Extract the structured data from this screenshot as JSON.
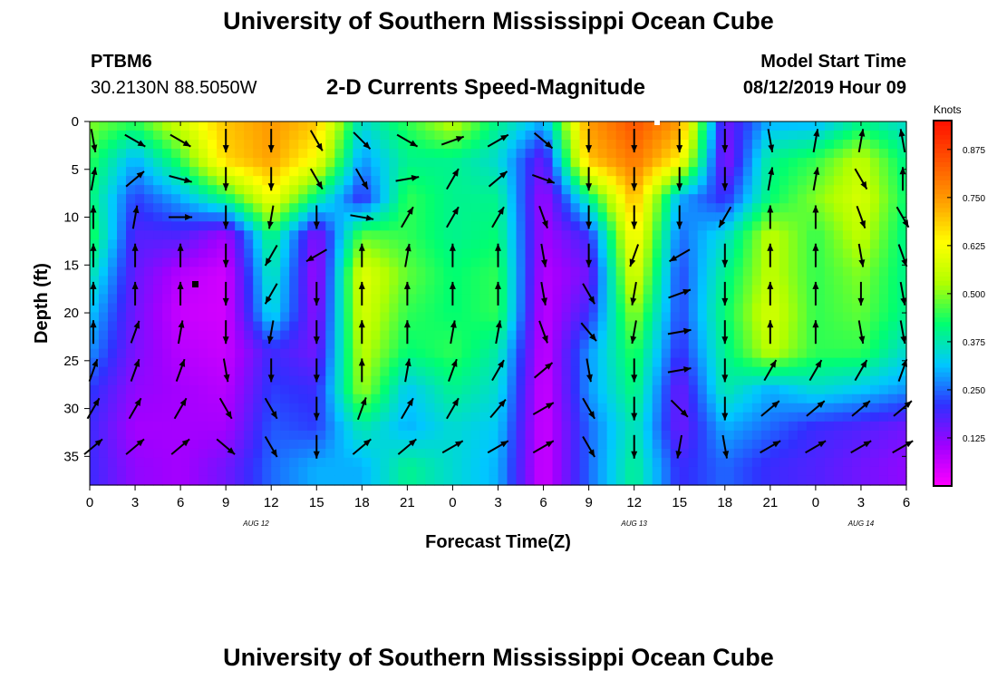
{
  "page": {
    "title_top": "University of Southern Mississippi Ocean Cube",
    "title_bottom": "University of Southern Mississippi Ocean Cube",
    "station_id": "PTBM6",
    "station_coords": "30.2130N 88.5050W",
    "plot_title": "2-D Currents Speed-Magnitude",
    "model_start_label": "Model Start Time",
    "model_start_value": "08/12/2019 Hour 09"
  },
  "chart_data": {
    "type": "heatmap",
    "title": "2-D Currents Speed-Magnitude",
    "xlabel": "Forecast Time(Z)",
    "ylabel": "Depth (ft)",
    "x_tick_labels": [
      "0",
      "3",
      "6",
      "9",
      "12",
      "15",
      "18",
      "21",
      "0",
      "3",
      "6",
      "9",
      "12",
      "15",
      "18",
      "21",
      "0",
      "3",
      "6"
    ],
    "x_range_hours": [
      0,
      54
    ],
    "date_labels": [
      {
        "text": "AUG 12",
        "hour": 11
      },
      {
        "text": "AUG 13",
        "hour": 36
      },
      {
        "text": "AUG 14",
        "hour": 51
      }
    ],
    "y_ticks": [
      0,
      5,
      10,
      15,
      20,
      25,
      30,
      35
    ],
    "y_range": [
      0,
      38
    ],
    "y_inverted": true,
    "colorbar": {
      "unit": "Knots",
      "tick_values": [
        0.125,
        0.25,
        0.375,
        0.5,
        0.625,
        0.75,
        0.875
      ],
      "tick_labels": [
        "0.125",
        "0.250",
        "0.375",
        "0.500",
        "0.625",
        "0.750",
        "0.875"
      ],
      "range": [
        0.0,
        0.95
      ],
      "colors": [
        "#ff00ff",
        "#a000ff",
        "#3030ff",
        "#00c8ff",
        "#00ff70",
        "#b0ff00",
        "#ffff00",
        "#ffa000",
        "#ff5500",
        "#ff1000"
      ]
    },
    "grid": false,
    "legend": "colorbar at right",
    "time_hours": [
      0,
      3,
      6,
      9,
      12,
      15,
      18,
      21,
      24,
      27,
      30,
      33,
      36,
      39,
      42,
      45,
      48,
      51,
      54
    ],
    "depth_ft": [
      0,
      4,
      8,
      12,
      16,
      20,
      24,
      28,
      32,
      36
    ],
    "speed_knots": [
      [
        0.5,
        0.45,
        0.58,
        0.7,
        0.75,
        0.7,
        0.35,
        0.45,
        0.55,
        0.4,
        0.3,
        0.75,
        0.85,
        0.75,
        0.15,
        0.3,
        0.3,
        0.4,
        0.35
      ],
      [
        0.45,
        0.3,
        0.45,
        0.68,
        0.74,
        0.62,
        0.28,
        0.4,
        0.4,
        0.35,
        0.15,
        0.7,
        0.8,
        0.65,
        0.12,
        0.4,
        0.45,
        0.55,
        0.4
      ],
      [
        0.42,
        0.22,
        0.3,
        0.42,
        0.62,
        0.4,
        0.2,
        0.45,
        0.4,
        0.4,
        0.1,
        0.4,
        0.72,
        0.3,
        0.2,
        0.42,
        0.5,
        0.58,
        0.42
      ],
      [
        0.45,
        0.18,
        0.18,
        0.1,
        0.42,
        0.12,
        0.48,
        0.45,
        0.4,
        0.42,
        0.1,
        0.2,
        0.65,
        0.25,
        0.35,
        0.55,
        0.45,
        0.55,
        0.4
      ],
      [
        0.38,
        0.16,
        0.08,
        0.05,
        0.38,
        0.1,
        0.6,
        0.48,
        0.42,
        0.45,
        0.08,
        0.15,
        0.6,
        0.22,
        0.4,
        0.55,
        0.45,
        0.5,
        0.4
      ],
      [
        0.32,
        0.15,
        0.06,
        0.05,
        0.35,
        0.12,
        0.58,
        0.45,
        0.42,
        0.45,
        0.07,
        0.2,
        0.52,
        0.22,
        0.42,
        0.58,
        0.45,
        0.48,
        0.4
      ],
      [
        0.28,
        0.14,
        0.08,
        0.06,
        0.2,
        0.15,
        0.55,
        0.42,
        0.45,
        0.38,
        0.06,
        0.28,
        0.45,
        0.2,
        0.4,
        0.55,
        0.45,
        0.45,
        0.35
      ],
      [
        0.22,
        0.12,
        0.1,
        0.08,
        0.22,
        0.2,
        0.52,
        0.32,
        0.4,
        0.35,
        0.05,
        0.28,
        0.42,
        0.15,
        0.38,
        0.3,
        0.35,
        0.32,
        0.28
      ],
      [
        0.2,
        0.1,
        0.1,
        0.1,
        0.24,
        0.22,
        0.38,
        0.3,
        0.35,
        0.32,
        0.05,
        0.25,
        0.38,
        0.15,
        0.3,
        0.25,
        0.2,
        0.18,
        0.15
      ],
      [
        0.2,
        0.12,
        0.1,
        0.15,
        0.25,
        0.3,
        0.3,
        0.4,
        0.35,
        0.3,
        0.05,
        0.25,
        0.4,
        0.2,
        0.25,
        0.2,
        0.18,
        0.15,
        0.12
      ]
    ],
    "vector_columns_hours": [
      0,
      3,
      6,
      9,
      12,
      15,
      18,
      21,
      24,
      27,
      30,
      33,
      36,
      39,
      42,
      45,
      48,
      51,
      54
    ],
    "vector_rows_ft": [
      2,
      6,
      10,
      14,
      18,
      22,
      26,
      30,
      34
    ],
    "vector_dirs_deg": [
      [
        80,
        30,
        30,
        90,
        90,
        60,
        45,
        30,
        -20,
        -30,
        40,
        90,
        90,
        90,
        90,
        80,
        -80,
        -80,
        -100
      ],
      [
        -80,
        -40,
        15,
        90,
        90,
        60,
        60,
        -10,
        -60,
        -40,
        20,
        90,
        90,
        90,
        90,
        -80,
        -80,
        60,
        -90
      ],
      [
        -90,
        -80,
        0,
        90,
        100,
        90,
        10,
        -60,
        -60,
        -60,
        70,
        90,
        90,
        90,
        120,
        -90,
        -90,
        70,
        60
      ],
      [
        -90,
        -90,
        -90,
        90,
        120,
        150,
        -90,
        -80,
        -90,
        -90,
        80,
        90,
        110,
        150,
        90,
        -90,
        -90,
        80,
        70
      ],
      [
        -90,
        -90,
        -90,
        90,
        120,
        90,
        -90,
        -90,
        -90,
        -90,
        80,
        60,
        100,
        -20,
        90,
        -90,
        -90,
        90,
        80
      ],
      [
        -90,
        -70,
        -80,
        90,
        100,
        90,
        -90,
        -90,
        -80,
        -80,
        70,
        50,
        100,
        -10,
        90,
        -90,
        -90,
        80,
        80
      ],
      [
        -70,
        -70,
        -70,
        80,
        90,
        90,
        -90,
        -80,
        -70,
        -60,
        -40,
        80,
        90,
        -10,
        90,
        -60,
        -60,
        -60,
        -70
      ],
      [
        -60,
        -60,
        -60,
        60,
        60,
        90,
        -70,
        -60,
        -60,
        -50,
        -30,
        60,
        90,
        45,
        90,
        -40,
        -40,
        -40,
        -40
      ],
      [
        -40,
        -40,
        -40,
        40,
        60,
        90,
        -40,
        -40,
        -30,
        -30,
        -30,
        60,
        90,
        100,
        80,
        -30,
        -30,
        -30,
        -30
      ]
    ]
  }
}
